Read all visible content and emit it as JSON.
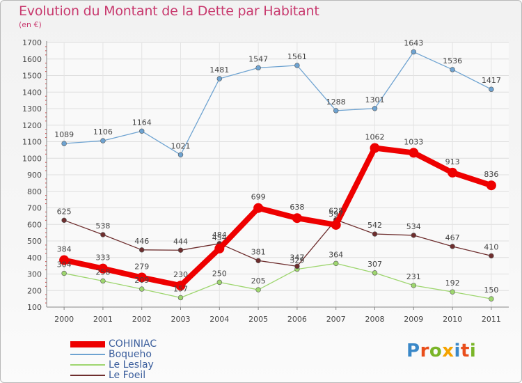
{
  "title": "Evolution du Montant de la Dette par Habitant",
  "subtitle": "(en €)",
  "brand": {
    "text": "Proxiti",
    "letter_colors": [
      "#3a88c8",
      "#e94e1b",
      "#7ab528",
      "#f5a300",
      "#3a88c8",
      "#e94e1b",
      "#7ab528"
    ]
  },
  "chart_data": {
    "type": "line",
    "title": "Evolution du Montant de la Dette par Habitant",
    "subtitle": "(en €)",
    "xlabel": "",
    "ylabel": "",
    "x": [
      "2000",
      "2001",
      "2002",
      "2003",
      "2004",
      "2005",
      "2006",
      "2007",
      "2008",
      "2009",
      "2010",
      "2011"
    ],
    "ylim": [
      100,
      1700
    ],
    "yticks": [
      100,
      200,
      300,
      400,
      500,
      600,
      700,
      800,
      900,
      1000,
      1100,
      1200,
      1300,
      1400,
      1500,
      1600,
      1700
    ],
    "grid": true,
    "legend_position": "bottom-left",
    "series": [
      {
        "name": "COHINIAC",
        "color": "#ee0000",
        "emphasis": true,
        "values": [
          384,
          333,
          279,
          230,
          454,
          699,
          638,
          597,
          1062,
          1033,
          913,
          836
        ]
      },
      {
        "name": "Boqueho",
        "color": "#6ea3d1",
        "values": [
          1089,
          1106,
          1164,
          1021,
          1481,
          1547,
          1561,
          1288,
          1301,
          1643,
          1536,
          1417
        ]
      },
      {
        "name": "Le Leslay",
        "color": "#9ed66f",
        "values": [
          304,
          258,
          209,
          157,
          250,
          205,
          329,
          364,
          307,
          231,
          192,
          150
        ]
      },
      {
        "name": "Le Foeil",
        "color": "#6e2e2e",
        "values": [
          625,
          538,
          446,
          444,
          484,
          381,
          347,
          628,
          542,
          534,
          467,
          410
        ]
      }
    ]
  }
}
